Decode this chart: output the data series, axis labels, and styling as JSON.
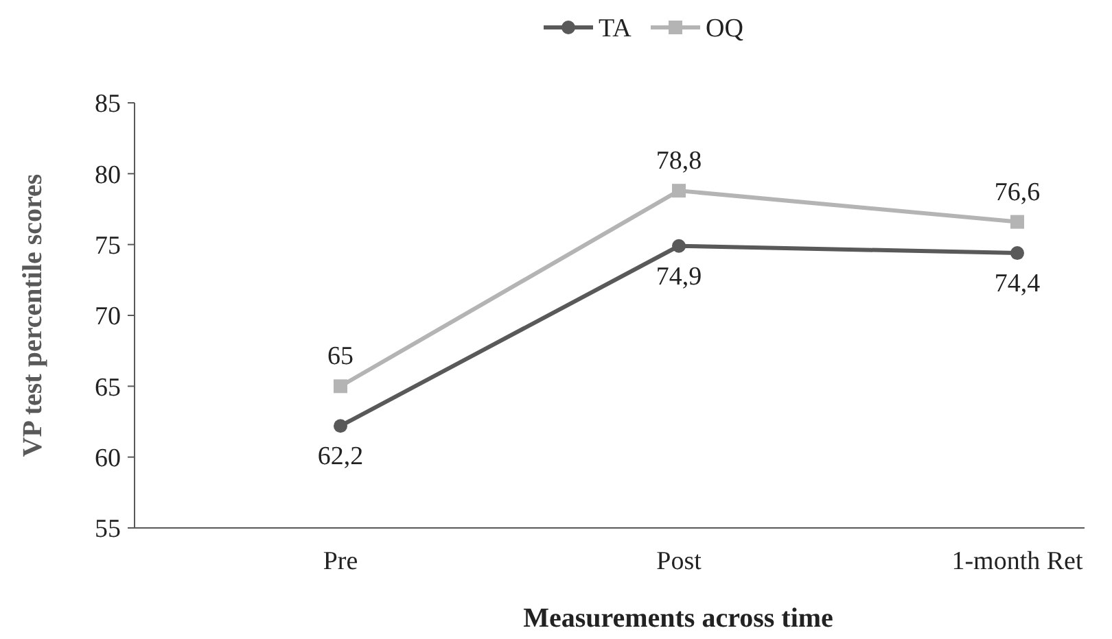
{
  "chart_data": {
    "type": "line",
    "xlabel": "Measurements across time",
    "ylabel": "VP test percentile scores",
    "categories": [
      "Pre",
      "Post",
      "1-month Ret"
    ],
    "ylim": [
      55,
      85
    ],
    "yticks": [
      55,
      60,
      65,
      70,
      75,
      80,
      85
    ],
    "grid": false,
    "legend": "top",
    "series": [
      {
        "name": "TA",
        "color": "#595959",
        "marker": "circle",
        "values": [
          62.2,
          74.9,
          74.4
        ],
        "value_labels": [
          "62,2",
          "74,9",
          "74,4"
        ]
      },
      {
        "name": "OQ",
        "color": "#b4b4b4",
        "marker": "square",
        "values": [
          65,
          78.8,
          76.6
        ],
        "value_labels": [
          "65",
          "78,8",
          "76,6"
        ]
      }
    ]
  }
}
